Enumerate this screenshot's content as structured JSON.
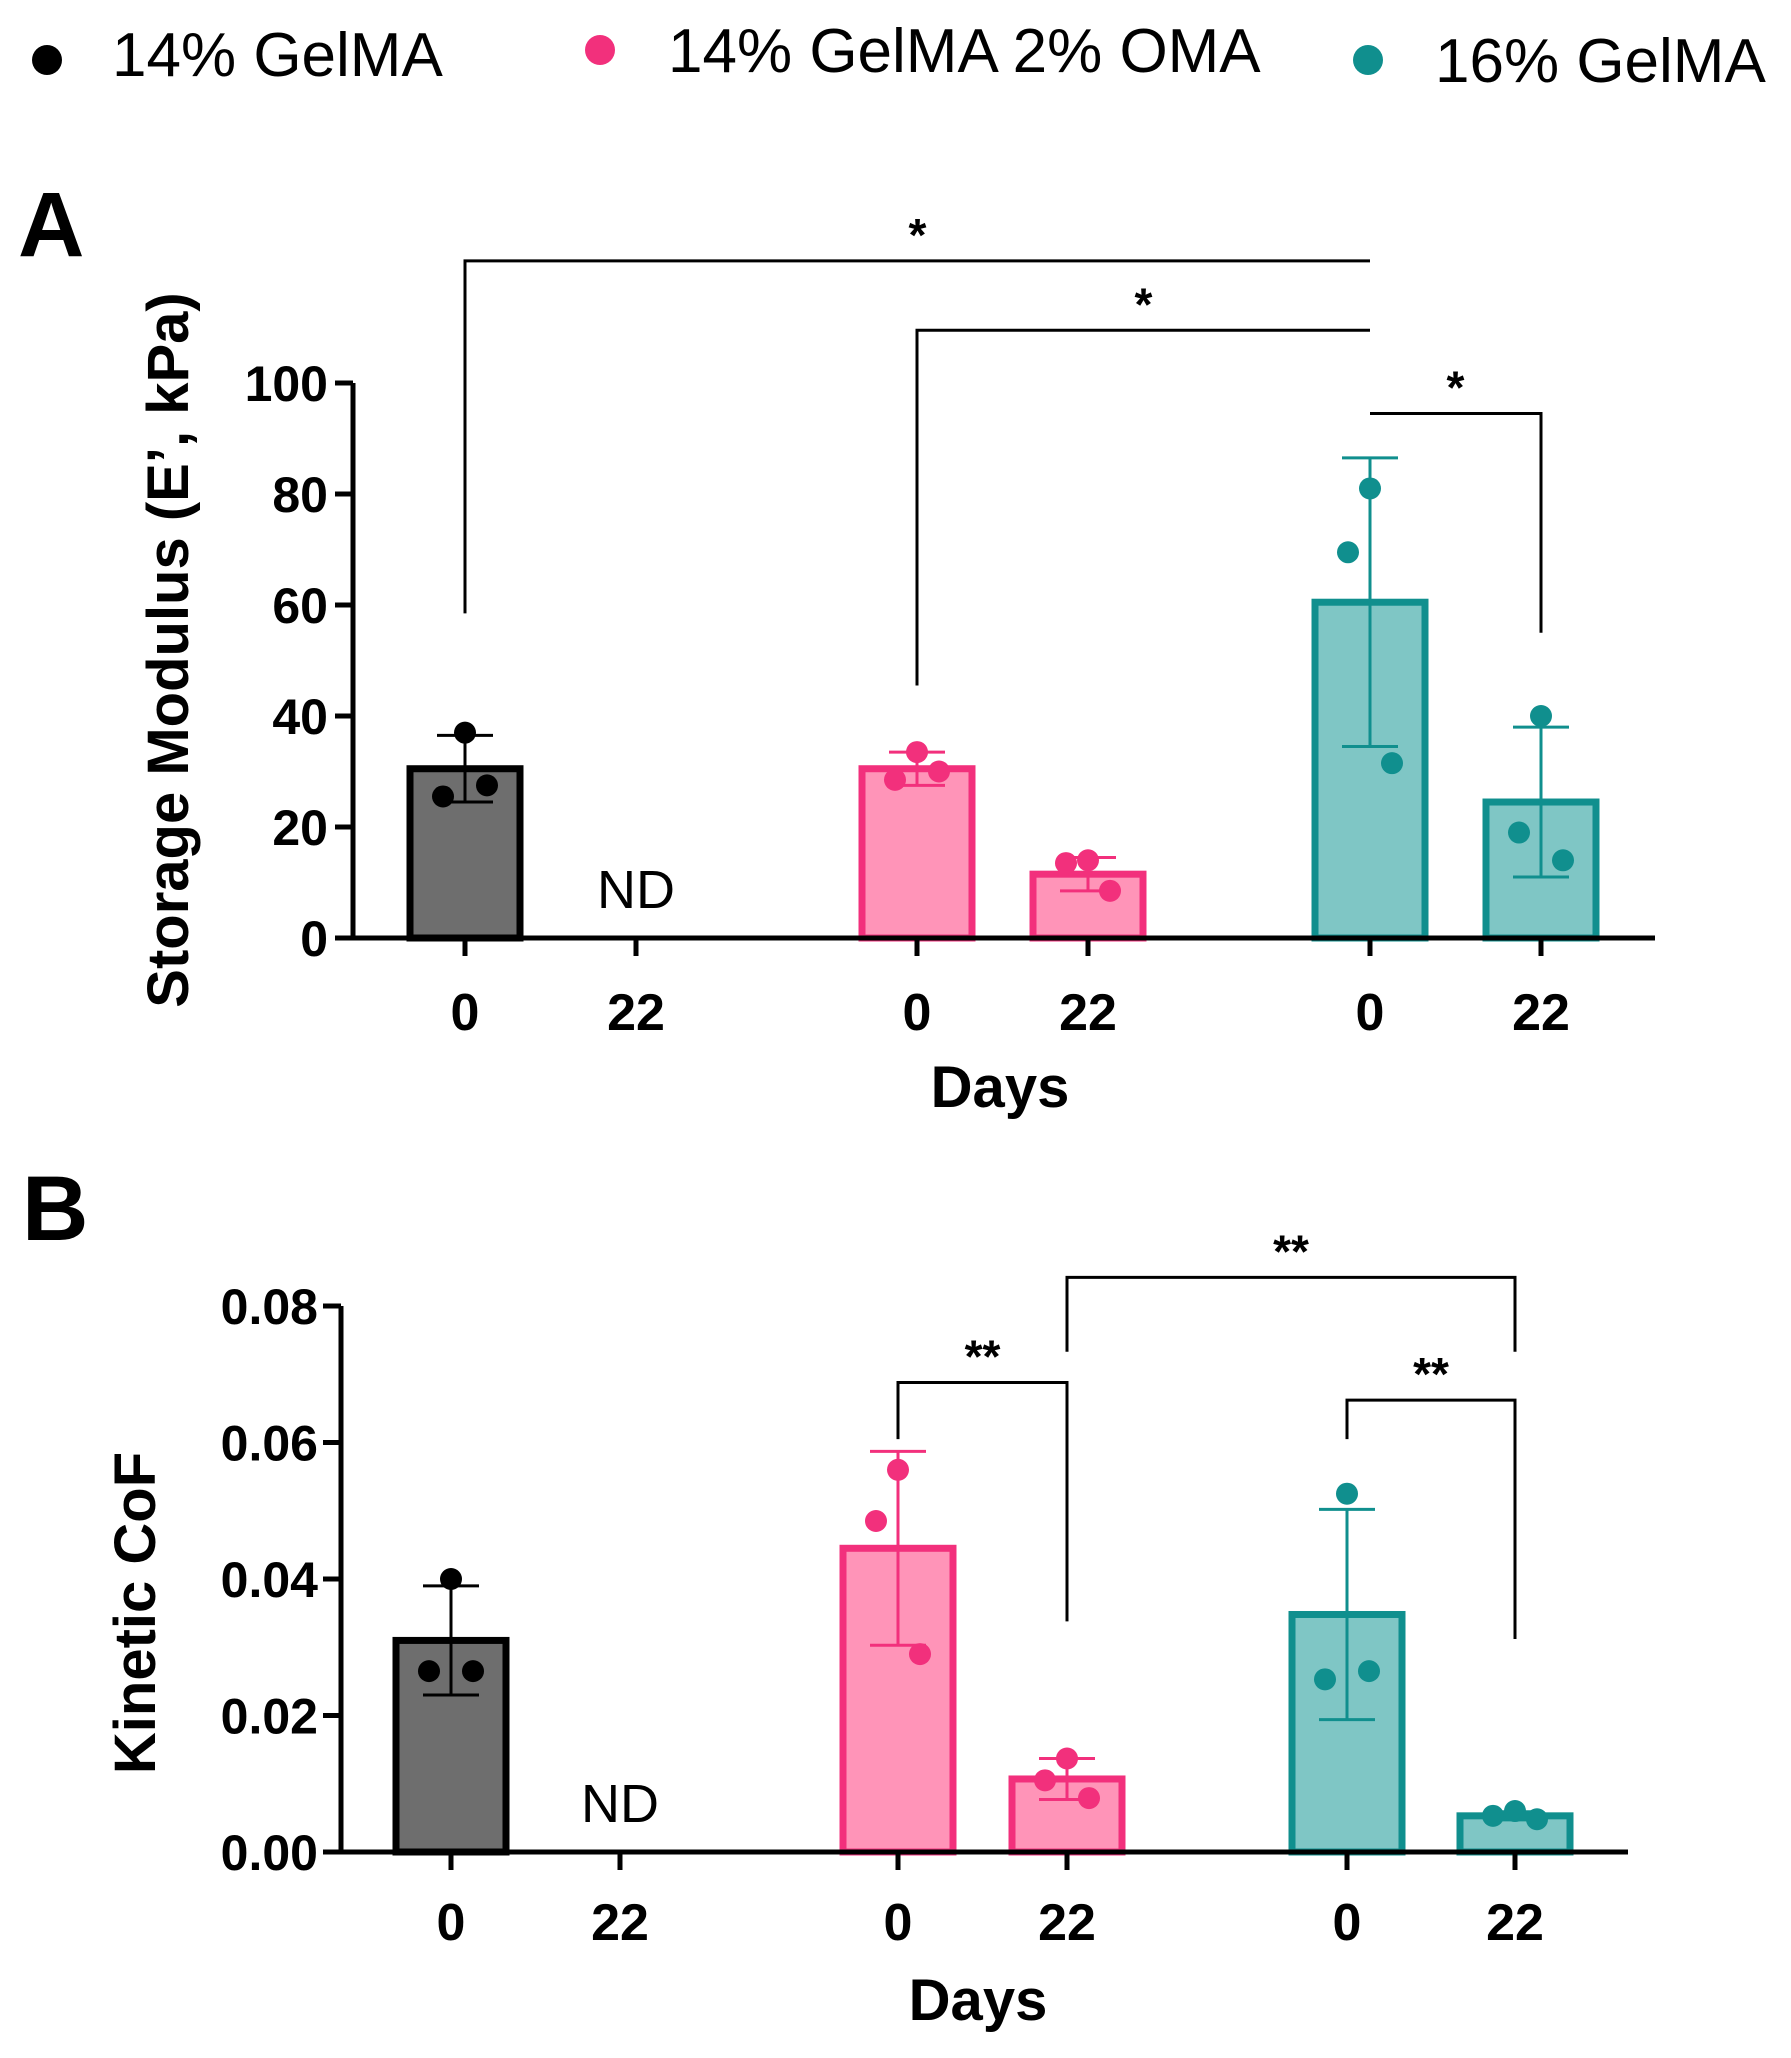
{
  "legend": {
    "placement": "top",
    "items": [
      {
        "label": "14% GelMA",
        "color": "#000000"
      },
      {
        "label": "14% GelMA 2% OMA",
        "color": "#f2307c"
      },
      {
        "label": "16% GelMA",
        "color": "#108f8e"
      }
    ]
  },
  "colors": {
    "groups": [
      {
        "fill": "#6e6e6e",
        "stroke": "#000000",
        "point": "#000000"
      },
      {
        "fill": "#ff94b8",
        "stroke": "#f2307c",
        "point": "#f2307c"
      },
      {
        "fill": "#7fc6c5",
        "stroke": "#108f8e",
        "point": "#108f8e"
      }
    ],
    "axis": "#000000"
  },
  "chart_data": [
    {
      "type": "bar",
      "panel_label": "A",
      "xlabel": "Days",
      "ylabel": "Storage Modulus (E’, kPa)",
      "ylim": [
        0,
        100
      ],
      "yticks": [
        0,
        20,
        40,
        60,
        80,
        100
      ],
      "ytick_labels": [
        "0",
        "20",
        "40",
        "60",
        "80",
        "100"
      ],
      "grid": false,
      "categories": [
        "0",
        "22",
        "0",
        "22",
        "0",
        "22"
      ],
      "bars": [
        {
          "group": 0,
          "day": "0",
          "value": 30.5,
          "sd": 6,
          "points": [
            37,
            25.5,
            27.5
          ]
        },
        {
          "group": 0,
          "day": "22",
          "value": null,
          "label": "ND"
        },
        {
          "group": 1,
          "day": "0",
          "value": 30.5,
          "sd": 3,
          "points": [
            33.5,
            28.5,
            30
          ]
        },
        {
          "group": 1,
          "day": "22",
          "value": 11.5,
          "sd": 3,
          "points": [
            14,
            13.5,
            8.5
          ]
        },
        {
          "group": 2,
          "day": "0",
          "value": 60.5,
          "sd": 26,
          "points": [
            81,
            69.5,
            31.5
          ]
        },
        {
          "group": 2,
          "day": "22",
          "value": 24.5,
          "sd": 13.5,
          "points": [
            40,
            19,
            14
          ]
        }
      ],
      "significance": [
        {
          "from": 0,
          "to": 4,
          "label": "*",
          "top": 122,
          "from_end": 58.5,
          "to_end": 122
        },
        {
          "from": 2,
          "to": 4,
          "label": "*",
          "top": 109.5,
          "from_end": 45.5,
          "to_end": 109.5
        },
        {
          "from": 4,
          "to": 5,
          "label": "*",
          "top": 94.5,
          "from_end": 94.5,
          "to_end": 55
        }
      ]
    },
    {
      "type": "bar",
      "panel_label": "B",
      "xlabel": "Days",
      "ylabel": "Kinetic CoF",
      "ylim": [
        0,
        0.08
      ],
      "yticks": [
        0,
        0.02,
        0.04,
        0.06,
        0.08
      ],
      "ytick_labels": [
        "0.00",
        "0.02",
        "0.04",
        "0.06",
        "0.08"
      ],
      "grid": false,
      "categories": [
        "0",
        "22",
        "0",
        "22",
        "0",
        "22"
      ],
      "bars": [
        {
          "group": 0,
          "day": "0",
          "value": 0.031,
          "sd": 0.008,
          "points": [
            0.04,
            0.0265,
            0.0265
          ]
        },
        {
          "group": 0,
          "day": "22",
          "value": null,
          "label": "ND"
        },
        {
          "group": 1,
          "day": "0",
          "value": 0.0445,
          "sd": 0.0142,
          "points": [
            0.056,
            0.0485,
            0.029
          ]
        },
        {
          "group": 1,
          "day": "22",
          "value": 0.0107,
          "sd": 0.003,
          "points": [
            0.0137,
            0.0105,
            0.0079
          ]
        },
        {
          "group": 2,
          "day": "0",
          "value": 0.0348,
          "sd": 0.0154,
          "points": [
            0.0525,
            0.0253,
            0.0265
          ]
        },
        {
          "group": 2,
          "day": "22",
          "value": 0.0053,
          "sd": 0.0006,
          "points": [
            0.006,
            0.0053,
            0.0048
          ]
        }
      ],
      "significance": [
        {
          "from": 2,
          "to": 3,
          "label": "**",
          "top": 0.0688,
          "from_end": 0.0605,
          "to_end": 0.0338
        },
        {
          "from": 3,
          "to": 5,
          "label": "**",
          "top": 0.0842,
          "from_end": 0.0733,
          "to_end": 0.0733
        },
        {
          "from": 4,
          "to": 5,
          "label": "**",
          "top": 0.0662,
          "from_end": 0.0605,
          "to_end": 0.0312
        }
      ]
    }
  ]
}
